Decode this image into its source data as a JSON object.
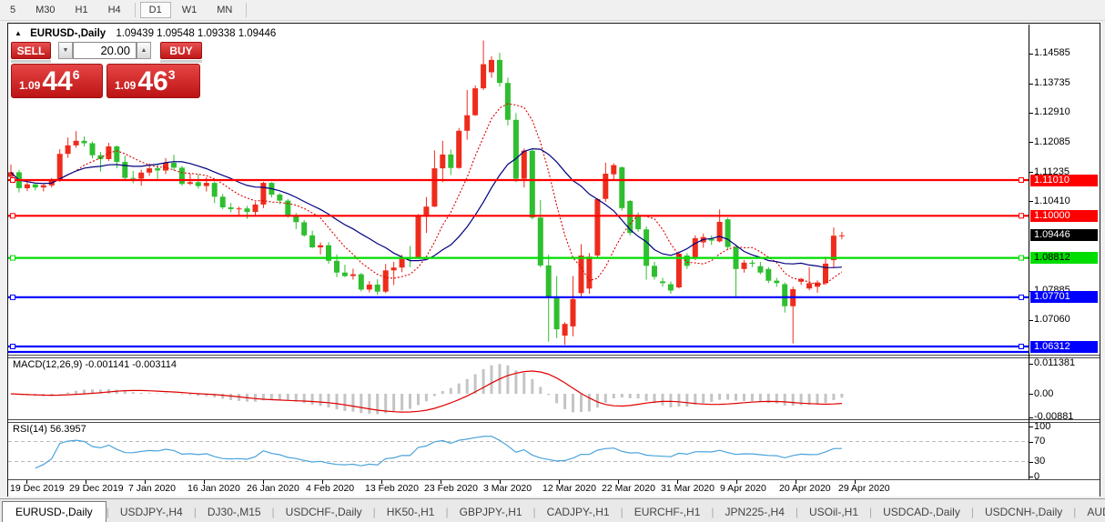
{
  "toolbar": {
    "items": [
      "5",
      "M30",
      "H1",
      "H4",
      "D1",
      "W1",
      "MN"
    ],
    "active": "D1"
  },
  "chart_header": {
    "collapse_icon": "▲",
    "title": "EURUSD-,Daily",
    "ohlc": "1.09439 1.09548 1.09338 1.09446"
  },
  "trade_panel": {
    "sell_label": "SELL",
    "buy_label": "BUY",
    "volume": "20.00",
    "spinner_up_icon": "▲",
    "spinner_down_icon": "▼",
    "bid": {
      "prefix": "1.09",
      "big": "44",
      "sup": "6"
    },
    "ask": {
      "prefix": "1.09",
      "big": "46",
      "sup": "3"
    }
  },
  "chart_data": {
    "type": "candlestick",
    "symbol": "EURUSD-,Daily",
    "bull_color": "#ee2c1c",
    "bear_color": "#2fbe2f",
    "candles": [
      [
        1.111,
        1.1145,
        1.1103,
        1.1123
      ],
      [
        1.1123,
        1.113,
        1.1066,
        1.1078
      ],
      [
        1.1078,
        1.1096,
        1.107,
        1.1089
      ],
      [
        1.1089,
        1.1093,
        1.1072,
        1.108
      ],
      [
        1.108,
        1.109,
        1.1069,
        1.1086
      ],
      [
        1.1086,
        1.1107,
        1.108,
        1.1099
      ],
      [
        1.1099,
        1.1188,
        1.1096,
        1.1175
      ],
      [
        1.1175,
        1.1221,
        1.1164,
        1.1199
      ],
      [
        1.1199,
        1.1239,
        1.1192,
        1.1212
      ],
      [
        1.1212,
        1.1224,
        1.1196,
        1.1205
      ],
      [
        1.1205,
        1.121,
        1.1162,
        1.1171
      ],
      [
        1.1171,
        1.118,
        1.1125,
        1.116
      ],
      [
        1.116,
        1.1206,
        1.1155,
        1.1196
      ],
      [
        1.1196,
        1.1199,
        1.1134,
        1.1152
      ],
      [
        1.1152,
        1.117,
        1.1103,
        1.1107
      ],
      [
        1.1107,
        1.1127,
        1.1092,
        1.1105
      ],
      [
        1.1105,
        1.113,
        1.1085,
        1.1122
      ],
      [
        1.1122,
        1.1148,
        1.1113,
        1.1134
      ],
      [
        1.1134,
        1.1145,
        1.1104,
        1.1128
      ],
      [
        1.1128,
        1.1163,
        1.1118,
        1.115
      ],
      [
        1.115,
        1.1172,
        1.1128,
        1.1136
      ],
      [
        1.1136,
        1.1141,
        1.1085,
        1.109
      ],
      [
        1.109,
        1.1119,
        1.1087,
        1.1095
      ],
      [
        1.1095,
        1.1118,
        1.1077,
        1.1084
      ],
      [
        1.1084,
        1.1109,
        1.1069,
        1.1093
      ],
      [
        1.1093,
        1.1097,
        1.1036,
        1.1054
      ],
      [
        1.1054,
        1.1062,
        1.1019,
        1.1024
      ],
      [
        1.1024,
        1.1036,
        1.101,
        1.1019
      ],
      [
        1.1019,
        1.1026,
        1.0998,
        1.1021
      ],
      [
        1.1021,
        1.1028,
        1.0992,
        1.1011
      ],
      [
        1.1011,
        1.1039,
        1.1001,
        1.1032
      ],
      [
        1.1032,
        1.1096,
        1.1022,
        1.1093
      ],
      [
        1.1093,
        1.1095,
        1.1052,
        1.106
      ],
      [
        1.106,
        1.1064,
        1.1033,
        1.1043
      ],
      [
        1.1043,
        1.1048,
        1.0995,
        1.1
      ],
      [
        1.1,
        1.1008,
        1.0963,
        1.0982
      ],
      [
        1.0982,
        1.0988,
        1.0941,
        1.0945
      ],
      [
        1.0945,
        1.0958,
        1.0909,
        1.0911
      ],
      [
        1.0911,
        1.0925,
        1.0891,
        1.0917
      ],
      [
        1.0917,
        1.0926,
        1.0865,
        1.0873
      ],
      [
        1.0873,
        1.0891,
        1.0827,
        1.084
      ],
      [
        1.084,
        1.0862,
        1.0827,
        1.083
      ],
      [
        1.083,
        1.0851,
        1.082,
        1.0835
      ],
      [
        1.0835,
        1.0839,
        1.0786,
        1.0792
      ],
      [
        1.0792,
        1.0816,
        1.0784,
        1.0806
      ],
      [
        1.0806,
        1.0821,
        1.0777,
        1.0786
      ],
      [
        1.0786,
        1.0864,
        1.0782,
        1.0846
      ],
      [
        1.0846,
        1.087,
        1.0805,
        1.0854
      ],
      [
        1.0854,
        1.089,
        1.0841,
        1.0881
      ],
      [
        1.0881,
        1.0915,
        1.0855,
        1.088
      ],
      [
        1.088,
        1.1005,
        1.0879,
        1.0998
      ],
      [
        1.0998,
        1.1053,
        1.0952,
        1.1026
      ],
      [
        1.1026,
        1.1185,
        1.1025,
        1.1134
      ],
      [
        1.1134,
        1.1212,
        1.1095,
        1.1173
      ],
      [
        1.1173,
        1.1187,
        1.1115,
        1.1135
      ],
      [
        1.1135,
        1.1248,
        1.1133,
        1.124
      ],
      [
        1.124,
        1.1355,
        1.1215,
        1.1284
      ],
      [
        1.1284,
        1.1368,
        1.1282,
        1.136
      ],
      [
        1.136,
        1.1495,
        1.1355,
        1.1428
      ],
      [
        1.1405,
        1.145,
        1.139,
        1.144
      ],
      [
        1.144,
        1.146,
        1.1365,
        1.1375
      ],
      [
        1.1375,
        1.139,
        1.1255,
        1.1271
      ],
      [
        1.1271,
        1.129,
        1.1095,
        1.1105
      ],
      [
        1.1105,
        1.119,
        1.108,
        1.1184
      ],
      [
        1.1184,
        1.1189,
        1.099,
        1.0995
      ],
      [
        1.0995,
        1.1045,
        1.0855,
        1.086
      ],
      [
        1.086,
        1.089,
        1.0645,
        1.077
      ],
      [
        1.077,
        1.083,
        1.0655,
        1.068
      ],
      [
        1.0662,
        1.07,
        1.0636,
        1.0695
      ],
      [
        1.0688,
        1.083,
        1.066,
        1.0765
      ],
      [
        1.0782,
        1.092,
        1.077,
        1.0888
      ],
      [
        1.0795,
        1.0895,
        1.078,
        1.0885
      ],
      [
        1.0888,
        1.105,
        1.088,
        1.1047
      ],
      [
        1.1048,
        1.115,
        1.104,
        1.1119
      ],
      [
        1.1117,
        1.1148,
        1.11,
        1.1143
      ],
      [
        1.1137,
        1.114,
        1.1015,
        1.1022
      ],
      [
        1.1042,
        1.1045,
        1.0945,
        1.0952
      ],
      [
        1.1,
        1.101,
        1.0955,
        1.0962
      ],
      [
        1.0962,
        1.097,
        1.082,
        1.0859
      ],
      [
        1.0859,
        1.087,
        1.082,
        1.0828
      ],
      [
        1.0815,
        1.0825,
        1.08,
        1.081
      ],
      [
        1.0807,
        1.0815,
        1.078,
        1.0789
      ],
      [
        1.0798,
        1.09,
        1.0795,
        1.0893
      ],
      [
        1.0888,
        1.0895,
        1.085,
        1.0859
      ],
      [
        1.088,
        1.0945,
        1.0875,
        1.0937
      ],
      [
        1.0925,
        1.095,
        1.091,
        1.094
      ],
      [
        1.0935,
        1.0945,
        1.0918,
        1.093
      ],
      [
        1.0928,
        1.1018,
        1.0925,
        1.0983
      ],
      [
        1.099,
        1.0995,
        1.0905,
        1.0912
      ],
      [
        1.0912,
        1.092,
        1.077,
        1.085
      ],
      [
        1.085,
        1.0875,
        1.084,
        1.0868
      ],
      [
        1.0868,
        1.0875,
        1.0855,
        1.0865
      ],
      [
        1.0858,
        1.087,
        1.0835,
        1.084
      ],
      [
        1.085,
        1.0855,
        1.081,
        1.0817
      ],
      [
        1.0817,
        1.0825,
        1.08,
        1.081
      ],
      [
        1.0807,
        1.0812,
        1.0727,
        1.0745
      ],
      [
        1.0745,
        1.08,
        1.064,
        1.0793
      ],
      [
        1.0814,
        1.0825,
        1.0805,
        1.0822
      ],
      [
        1.0795,
        1.0855,
        1.079,
        1.081
      ],
      [
        1.08,
        1.0818,
        1.0783,
        1.0812
      ],
      [
        1.081,
        1.0885,
        1.0805,
        1.0865
      ],
      [
        1.0875,
        1.0967,
        1.0852,
        1.0944
      ],
      [
        1.0944,
        1.0955,
        1.0934,
        1.0945
      ]
    ],
    "levels": [
      {
        "price": 1.1101,
        "label": "1.11010",
        "color": "#ff0000",
        "text_color": "#ffffff"
      },
      {
        "price": 1.1,
        "label": "1.10000",
        "color": "#ff0000",
        "text_color": "#ffffff"
      },
      {
        "price": 1.08812,
        "label": "1.08812",
        "color": "#00dd00",
        "text_color": "#000000"
      },
      {
        "price": 1.07701,
        "label": "1.07701",
        "color": "#0000ff",
        "text_color": "#ffffff"
      },
      {
        "price": 1.06312,
        "label": "1.06312",
        "color": "#0000ff",
        "text_color": "#ffffff"
      },
      {
        "price": 1.0616,
        "label": "",
        "color": "#0000ff",
        "text_color": "#ffffff"
      }
    ],
    "current_price": {
      "price": 1.09446,
      "label": "1.09446",
      "color": "#000000",
      "text_color": "#ffffff"
    },
    "y_ticks": [
      "1.14585",
      "1.13735",
      "1.12910",
      "1.12085",
      "1.11235",
      "1.10410",
      "1.07885",
      "1.07060"
    ],
    "x_ticks": [
      "19 Dec 2019",
      "29 Dec 2019",
      "7 Jan 2020",
      "16 Jan 2020",
      "26 Jan 2020",
      "4 Feb 2020",
      "13 Feb 2020",
      "23 Feb 2020",
      "3 Mar 2020",
      "12 Mar 2020",
      "22 Mar 2020",
      "31 Mar 2020",
      "9 Apr 2020",
      "20 Apr 2020",
      "29 Apr 2020"
    ],
    "ma_fast": {
      "period": 8,
      "color": "#dd0000",
      "style": "dotted"
    },
    "ma_slow": {
      "period": 16,
      "color": "#000080",
      "style": "solid"
    },
    "macd": {
      "label": "MACD(12,26,9) -0.001141 -0.003114",
      "fast": 12,
      "slow": 26,
      "signal": 9,
      "y_ticks": [
        {
          "v": 0.011381,
          "t": "0.011381"
        },
        {
          "v": 0,
          "t": "0.00"
        },
        {
          "v": -0.00881,
          "t": "-0.00881"
        }
      ],
      "hist_color": "#c4c4c4",
      "signal_color": "#e00000"
    },
    "rsi": {
      "label": "RSI(14) 56.3957",
      "period": 14,
      "color": "#4aa3dc",
      "y_ticks": [
        {
          "v": 100,
          "t": "100"
        },
        {
          "v": 70,
          "t": "70"
        },
        {
          "v": 30,
          "t": "30"
        },
        {
          "v": 0,
          "t": "0"
        }
      ],
      "levels": [
        70,
        30
      ]
    }
  },
  "tabs": {
    "items": [
      "EURUSD-,Daily",
      "USDJPY-,H4",
      "DJ30-,M15",
      "USDCHF-,Daily",
      "HK50-,H1",
      "GBPJPY-,H1",
      "CADJPY-,H1",
      "EURCHF-,H1",
      "JPN225-,H4",
      "USOil-,H1",
      "USDCAD-,Daily",
      "USDCNH-,Daily",
      "AUDU"
    ],
    "active": "EURUSD-,Daily",
    "scroll_left_icon": "◄",
    "scroll_right_icon": "►"
  }
}
